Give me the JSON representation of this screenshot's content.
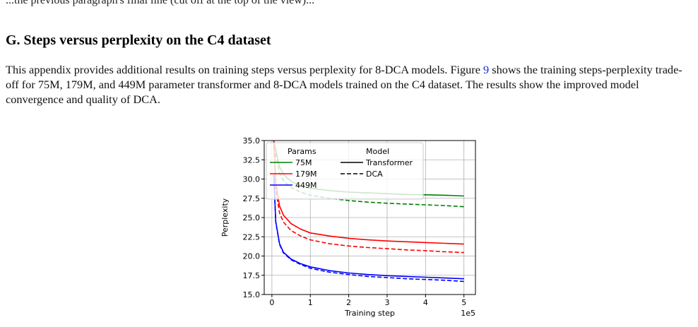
{
  "top_line": "...the previous paragraph's final line (cut off at the top of the view)...",
  "section": {
    "title": "G. Steps versus perplexity on the C4 dataset",
    "para_part1": "This appendix provides additional results on training steps versus perplexity for 8-DCA models. Figure ",
    "figure_ref": "9",
    "para_part2": " shows the training steps-perplexity trade-off for 75M, 179M, and 449M parameter transformer and 8-DCA models trained on the C4 dataset. The results show the improved model convergence and quality of DCA."
  },
  "colors": {
    "75M": "#008000",
    "179M": "#ff0000",
    "449M": "#0000ff",
    "link": "#1a2bd0"
  },
  "chart_data": {
    "type": "line",
    "xlabel": "Training step",
    "ylabel": "Perplexity",
    "x_scale_note": "1e5",
    "xlim": [
      -0.2,
      5.3
    ],
    "ylim": [
      15.0,
      35.0
    ],
    "grid": true,
    "x_ticks": [
      0,
      1,
      2,
      3,
      4,
      5
    ],
    "y_ticks": [
      "15.0",
      "17.5",
      "20.0",
      "22.5",
      "25.0",
      "27.5",
      "30.0",
      "32.5",
      "35.0"
    ],
    "legend": {
      "placement": "top-left",
      "col1_title": "Params",
      "col2_title": "Model",
      "params": [
        "75M",
        "179M",
        "449M"
      ],
      "models": [
        "Transformer",
        "DCA"
      ]
    },
    "x": [
      0.05,
      0.1,
      0.2,
      0.3,
      0.5,
      0.75,
      1.0,
      1.5,
      2.0,
      2.5,
      3.0,
      3.5,
      4.0,
      4.5,
      5.0
    ],
    "series": [
      {
        "params": "75M",
        "model": "Transformer",
        "color": "#008000",
        "dash": false,
        "values": [
          35.0,
          33.8,
          31.6,
          30.6,
          29.7,
          29.1,
          28.8,
          28.5,
          28.3,
          28.2,
          28.1,
          28.0,
          27.95,
          27.9,
          27.8
        ]
      },
      {
        "params": "75M",
        "model": "DCA",
        "color": "#008000",
        "dash": true,
        "values": [
          35.0,
          33.0,
          30.8,
          29.8,
          28.9,
          28.3,
          27.9,
          27.5,
          27.2,
          27.0,
          26.85,
          26.75,
          26.65,
          26.55,
          26.4
        ]
      },
      {
        "params": "179M",
        "model": "Transformer",
        "color": "#ff0000",
        "dash": false,
        "values": [
          35.0,
          29.5,
          26.5,
          25.3,
          24.2,
          23.5,
          23.0,
          22.6,
          22.3,
          22.1,
          21.95,
          21.85,
          21.75,
          21.65,
          21.55
        ]
      },
      {
        "params": "179M",
        "model": "DCA",
        "color": "#ff0000",
        "dash": true,
        "values": [
          35.0,
          28.6,
          25.6,
          24.4,
          23.3,
          22.6,
          22.1,
          21.6,
          21.3,
          21.1,
          20.95,
          20.8,
          20.7,
          20.55,
          20.45
        ]
      },
      {
        "params": "449M",
        "model": "Transformer",
        "color": "#0000ff",
        "dash": false,
        "values": [
          30.5,
          24.5,
          21.6,
          20.5,
          19.6,
          19.0,
          18.6,
          18.1,
          17.8,
          17.6,
          17.45,
          17.35,
          17.25,
          17.15,
          17.05
        ]
      },
      {
        "params": "449M",
        "model": "DCA",
        "color": "#0000ff",
        "dash": true,
        "values": [
          30.5,
          24.4,
          21.5,
          20.4,
          19.5,
          18.9,
          18.4,
          17.9,
          17.6,
          17.35,
          17.2,
          17.05,
          16.95,
          16.85,
          16.7
        ]
      }
    ]
  }
}
